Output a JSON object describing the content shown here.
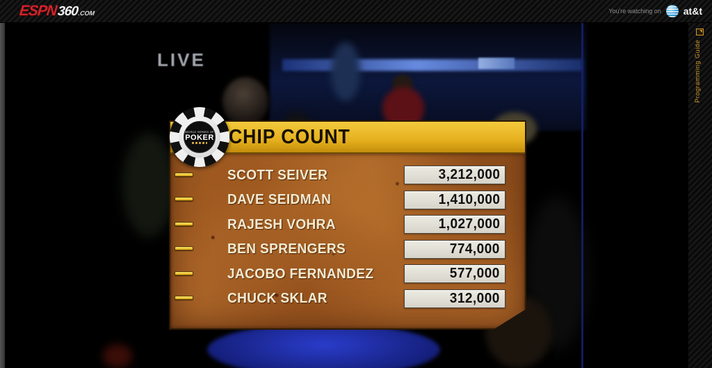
{
  "header": {
    "logo": {
      "espn": "ESPN",
      "num": "360",
      "dotcom": ".COM"
    },
    "watching_on": "You're watching on",
    "provider": "at&t"
  },
  "right_rail": {
    "programming_guide": "Programming Guide"
  },
  "video": {
    "live_badge": "LIVE"
  },
  "chip_count": {
    "title": "CHIP COUNT",
    "chip_logo": {
      "top": "WORLD SERIES OF",
      "main": "POKER"
    },
    "players": [
      {
        "name": "SCOTT SEIVER",
        "chips": "3,212,000"
      },
      {
        "name": "DAVE SEIDMAN",
        "chips": "1,410,000"
      },
      {
        "name": "RAJESH VOHRA",
        "chips": "1,027,000"
      },
      {
        "name": "BEN SPRENGERS",
        "chips": "774,000"
      },
      {
        "name": "JACOBO FERNANDEZ",
        "chips": "577,000"
      },
      {
        "name": "CHUCK SKLAR",
        "chips": "312,000"
      }
    ]
  },
  "colors": {
    "espn_red": "#d2232a",
    "att_blue": "#2a96d4",
    "guide_orange": "#d19a2f",
    "header_yellow": "#e4af1e",
    "parchment": "#a96327",
    "value_box": "#d6d4ca",
    "tick_yellow": "#dcab17"
  }
}
